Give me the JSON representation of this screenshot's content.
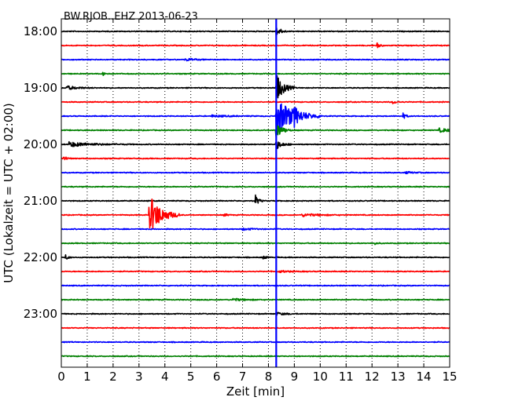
{
  "chart_data": {
    "type": "line",
    "title": "BW.RJOB..EHZ 2013-06-23",
    "xlabel": "Zeit  [min]",
    "ylabel": "UTC (Lokalzeit = UTC + 02:00)",
    "xlim": [
      0,
      15
    ],
    "x_ticks": [
      "0",
      "1",
      "2",
      "3",
      "4",
      "5",
      "6",
      "7",
      "8",
      "9",
      "10",
      "11",
      "12",
      "13",
      "14",
      "15"
    ],
    "y_ticks": [
      {
        "label": "18:00",
        "row": 0
      },
      {
        "label": "19:00",
        "row": 4
      },
      {
        "label": "20:00",
        "row": 8
      },
      {
        "label": "21:00",
        "row": 12
      },
      {
        "label": "22:00",
        "row": 16
      },
      {
        "label": "23:00",
        "row": 20
      }
    ],
    "row_count": 24,
    "row_interval_min": 15,
    "grid": "vertical-dotted",
    "trace_colors": [
      "#000000",
      "#ff0000",
      "#0000ff",
      "#008000"
    ],
    "marker": {
      "x": 8.3,
      "color": "#0000ff"
    },
    "events": [
      {
        "row": 0,
        "x": 8.3,
        "amp": 0.6,
        "dur": 0.15
      },
      {
        "row": 1,
        "x": 12.2,
        "amp": 0.25,
        "dur": 0.1
      },
      {
        "row": 2,
        "x": 4.8,
        "amp": 0.15,
        "dur": 0.3
      },
      {
        "row": 3,
        "x": 1.6,
        "amp": 0.15,
        "dur": 0.15
      },
      {
        "row": 4,
        "x": 0.2,
        "amp": 0.2,
        "dur": 0.4
      },
      {
        "row": 4,
        "x": 8.3,
        "amp": 1.5,
        "dur": 0.25
      },
      {
        "row": 5,
        "x": 12.8,
        "amp": 0.15,
        "dur": 0.15
      },
      {
        "row": 6,
        "x": 8.3,
        "amp": 2.0,
        "dur": 0.6
      },
      {
        "row": 6,
        "x": 9.0,
        "amp": 0.55,
        "dur": 0.15
      },
      {
        "row": 6,
        "x": 13.2,
        "amp": 0.3,
        "dur": 0.1
      },
      {
        "row": 6,
        "x": 5.8,
        "amp": 0.1,
        "dur": 0.6
      },
      {
        "row": 7,
        "x": 14.6,
        "amp": 0.2,
        "dur": 0.5
      },
      {
        "row": 7,
        "x": 8.3,
        "amp": 0.9,
        "dur": 0.2
      },
      {
        "row": 8,
        "x": 0.3,
        "amp": 0.25,
        "dur": 0.8
      },
      {
        "row": 8,
        "x": 8.3,
        "amp": 0.5,
        "dur": 0.2
      },
      {
        "row": 9,
        "x": 0.1,
        "amp": 0.3,
        "dur": 0.1
      },
      {
        "row": 10,
        "x": 13.3,
        "amp": 0.1,
        "dur": 0.3
      },
      {
        "row": 12,
        "x": 7.5,
        "amp": 0.6,
        "dur": 0.1
      },
      {
        "row": 13,
        "x": 3.4,
        "amp": 2.2,
        "dur": 0.4
      },
      {
        "row": 13,
        "x": 6.3,
        "amp": 0.15,
        "dur": 0.1
      },
      {
        "row": 13,
        "x": 9.3,
        "amp": 0.15,
        "dur": 0.6
      },
      {
        "row": 14,
        "x": 7.0,
        "amp": 0.1,
        "dur": 0.4
      },
      {
        "row": 15,
        "x": 12.1,
        "amp": 0.12,
        "dur": 0.1
      },
      {
        "row": 16,
        "x": 0.15,
        "amp": 0.3,
        "dur": 0.1
      },
      {
        "row": 16,
        "x": 7.8,
        "amp": 0.2,
        "dur": 0.1
      },
      {
        "row": 17,
        "x": 8.4,
        "amp": 0.1,
        "dur": 0.4
      },
      {
        "row": 19,
        "x": 6.6,
        "amp": 0.15,
        "dur": 0.4
      },
      {
        "row": 20,
        "x": 8.3,
        "amp": 0.15,
        "dur": 0.3
      }
    ]
  }
}
